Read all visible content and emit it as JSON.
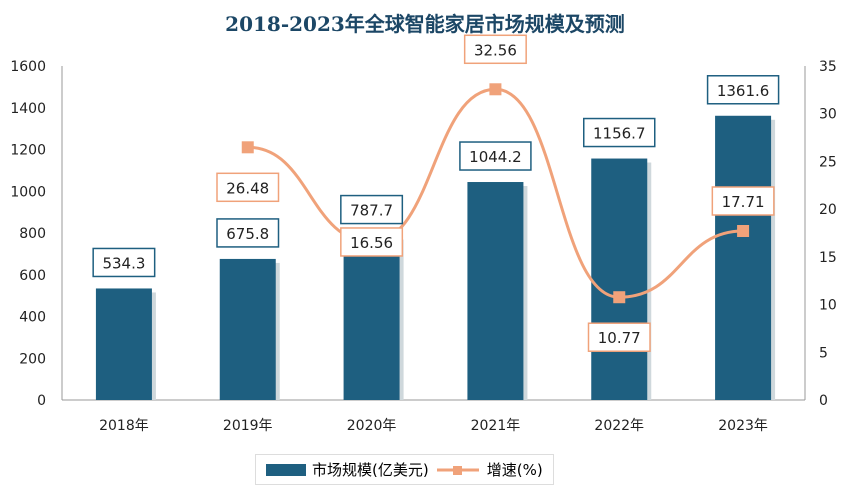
{
  "chart_data": {
    "type": "bar+line",
    "title": "2018-2023年全球智能家居市场规模及预测",
    "categories": [
      "2018年",
      "2019年",
      "2020年",
      "2021年",
      "2022年",
      "2023年"
    ],
    "series": [
      {
        "name": "市场规模(亿美元)",
        "type": "bar",
        "axis": "left",
        "color": "#1e5f80",
        "values": [
          534.3,
          675.8,
          787.7,
          1044.2,
          1156.7,
          1361.6
        ]
      },
      {
        "name": "增速(%)",
        "type": "line",
        "axis": "right",
        "color": "#f0a27a",
        "values": [
          null,
          26.48,
          16.56,
          32.56,
          10.77,
          17.71
        ]
      }
    ],
    "ylim_left": [
      0,
      1600
    ],
    "yticks_left": [
      0,
      200,
      400,
      600,
      800,
      1000,
      1200,
      1400,
      1600
    ],
    "ylim_right": [
      0,
      35
    ],
    "yticks_right": [
      0,
      5,
      10,
      15,
      20,
      25,
      30,
      35
    ],
    "grid": false,
    "legend_position": "bottom"
  }
}
